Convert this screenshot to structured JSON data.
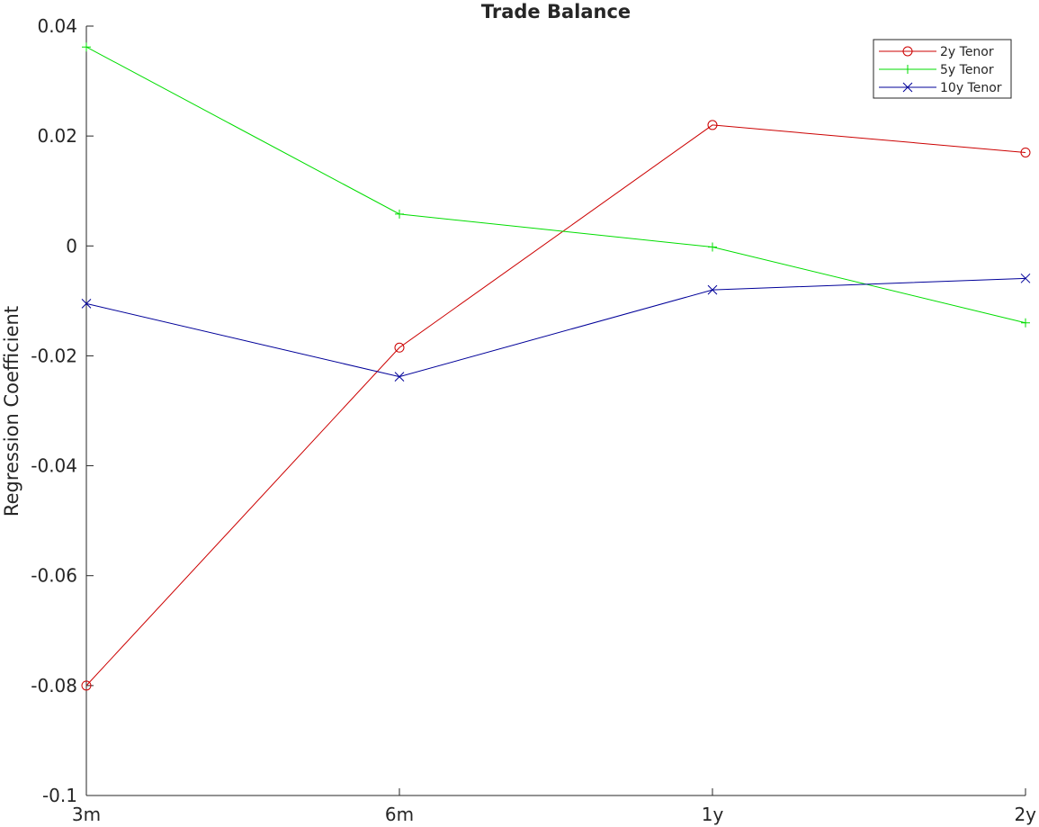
{
  "chart_data": {
    "type": "line",
    "title": "Trade Balance",
    "xlabel": "",
    "ylabel": "Regression Coefficient",
    "categories": [
      "3m",
      "6m",
      "1y",
      "2y"
    ],
    "ylim": [
      -0.1,
      0.04
    ],
    "yticks": [
      -0.1,
      -0.08,
      -0.06,
      -0.04,
      -0.02,
      0,
      0.02,
      0.04
    ],
    "ytick_labels": [
      "-0.1",
      "-0.08",
      "-0.06",
      "-0.04",
      "-0.02",
      "0",
      "0.02",
      "0.04"
    ],
    "grid": false,
    "legend_position": "top-right",
    "series": [
      {
        "name": "2y Tenor",
        "color": "#cc0000",
        "marker": "circle",
        "values": [
          -0.08,
          -0.0185,
          0.022,
          0.017
        ]
      },
      {
        "name": "5y Tenor",
        "color": "#00dd00",
        "marker": "plus",
        "values": [
          0.0362,
          0.0058,
          -0.0002,
          -0.014
        ]
      },
      {
        "name": "10y Tenor",
        "color": "#000099",
        "marker": "cross",
        "values": [
          -0.0105,
          -0.0238,
          -0.008,
          -0.0059
        ]
      }
    ]
  }
}
